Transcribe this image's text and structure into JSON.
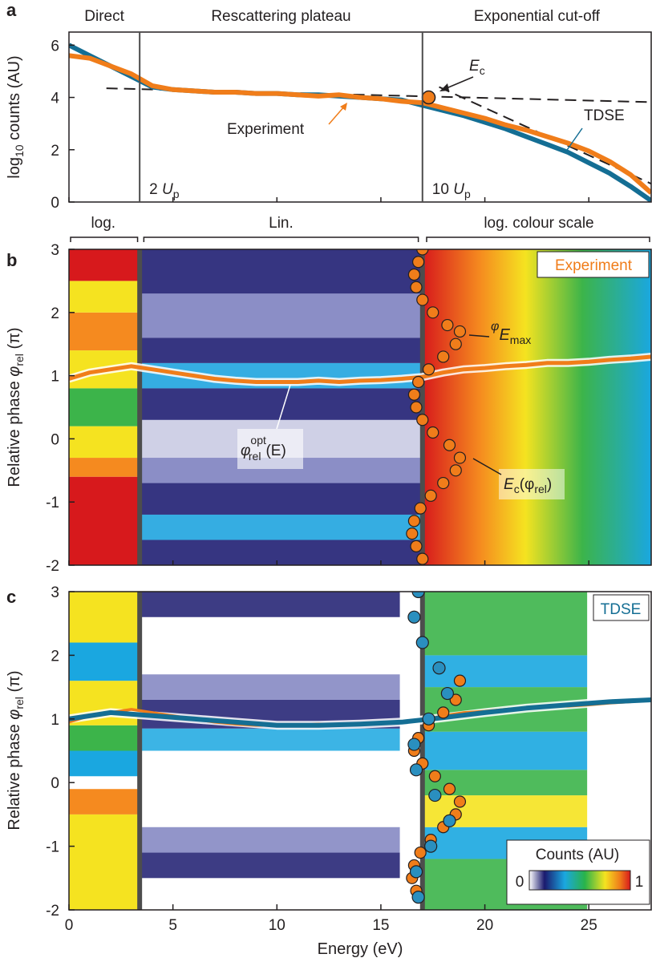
{
  "chart_data": [
    {
      "panel": "a",
      "type": "line",
      "ylabel": "log10 counts (AU)",
      "xlim": [
        0,
        28
      ],
      "ylim": [
        0,
        6.5
      ],
      "yticks": [
        0,
        2,
        4,
        6
      ],
      "regions": [
        "Direct",
        "Rescattering plateau",
        "Exponential cut-off"
      ],
      "region_boundaries": [
        3.4,
        17.0
      ],
      "boundary_labels": [
        {
          "base": "2 ",
          "var": "U",
          "sub": "p"
        },
        {
          "base": "10 ",
          "var": "U",
          "sub": "p"
        }
      ],
      "annotations": {
        "ec": {
          "var": "E",
          "sub": "c",
          "x": 17.3,
          "y": 4.0
        },
        "experiment": "Experiment",
        "tdse": "TDSE"
      },
      "series": [
        {
          "name": "Experiment",
          "color": "#f07d1a",
          "x": [
            0,
            1,
            2,
            3,
            4,
            5,
            6,
            7,
            8,
            9,
            10,
            11,
            12,
            13,
            14,
            15,
            16,
            17,
            18,
            19,
            20,
            21,
            22,
            23,
            24,
            25,
            26,
            27,
            28
          ],
          "y": [
            5.6,
            5.5,
            5.2,
            4.9,
            4.45,
            4.3,
            4.25,
            4.2,
            4.2,
            4.15,
            4.15,
            4.1,
            4.05,
            4.1,
            4.0,
            3.95,
            3.85,
            3.8,
            3.6,
            3.4,
            3.2,
            2.95,
            2.75,
            2.5,
            2.25,
            1.95,
            1.55,
            1.05,
            0.35
          ]
        },
        {
          "name": "TDSE",
          "color": "#146e94",
          "x": [
            0,
            1,
            2,
            3,
            4,
            5,
            6,
            7,
            8,
            9,
            10,
            11,
            12,
            13,
            14,
            15,
            16,
            17,
            18,
            19,
            20,
            21,
            22,
            23,
            24,
            25,
            26,
            27,
            28
          ],
          "y": [
            6.0,
            5.6,
            5.2,
            4.8,
            4.4,
            4.3,
            4.25,
            4.2,
            4.2,
            4.15,
            4.15,
            4.1,
            4.1,
            4.05,
            4.0,
            3.95,
            3.9,
            3.7,
            3.5,
            3.3,
            3.05,
            2.8,
            2.5,
            2.2,
            1.9,
            1.5,
            1.1,
            0.6,
            0.05
          ]
        }
      ],
      "fit_lines": [
        {
          "x": [
            1.8,
            29.0
          ],
          "y": [
            4.35,
            3.8
          ]
        },
        {
          "x": [
            17.8,
            28.0
          ],
          "y": [
            4.4,
            0.7
          ]
        }
      ]
    },
    {
      "panel": "b",
      "type": "heatmap",
      "ylabel": "Relative phase φrel (π)",
      "xlim": [
        0,
        28
      ],
      "ylim": [
        -2,
        3
      ],
      "yticks": [
        -2,
        -1,
        0,
        1,
        2,
        3
      ],
      "scale_labels": [
        "log.",
        "Lin.",
        "log. colour scale"
      ],
      "legend": "Experiment",
      "annotations": {
        "phi_emax": {
          "var": "φ",
          "sub": "E",
          "subsub": "max"
        },
        "phi_opt": {
          "var": "φ",
          "sub": "rel",
          "sup": "opt",
          "arg": "(E)"
        },
        "ec_phi": {
          "var": "E",
          "sub": "c",
          "arg": "(φ",
          "argsub": "rel",
          "close": ")"
        }
      },
      "phi_opt_curve": {
        "x": [
          0,
          1,
          2,
          3,
          4,
          5,
          6,
          7,
          8,
          9,
          10,
          11,
          12,
          13,
          14,
          15,
          16,
          17,
          18,
          19,
          20,
          21,
          22,
          23,
          24,
          25,
          26,
          27,
          28
        ],
        "y": [
          0.95,
          1.05,
          1.1,
          1.15,
          1.1,
          1.05,
          1.0,
          0.95,
          0.92,
          0.9,
          0.9,
          0.9,
          0.92,
          0.9,
          0.92,
          0.93,
          0.95,
          0.98,
          1.05,
          1.1,
          1.12,
          1.15,
          1.17,
          1.2,
          1.2,
          1.22,
          1.25,
          1.27,
          1.3
        ]
      },
      "ec_curve": {
        "phi": [
          3.0,
          2.8,
          2.6,
          2.4,
          2.2,
          2.0,
          1.8,
          1.7,
          1.5,
          1.3,
          1.1,
          0.9,
          0.7,
          0.5,
          0.3,
          0.1,
          -0.1,
          -0.3,
          -0.5,
          -0.7,
          -0.9,
          -1.1,
          -1.3,
          -1.5,
          -1.7,
          -1.9
        ],
        "E": [
          17.0,
          16.8,
          16.6,
          16.7,
          17.0,
          17.5,
          18.2,
          18.8,
          18.6,
          18.0,
          17.3,
          16.8,
          16.6,
          16.7,
          17.0,
          17.5,
          18.3,
          18.8,
          18.6,
          18.0,
          17.4,
          16.9,
          16.6,
          16.5,
          16.7,
          17.0
        ]
      }
    },
    {
      "panel": "c",
      "type": "heatmap",
      "ylabel": "Relative phase φrel (π)",
      "xlabel": "Energy (eV)",
      "xlim": [
        0,
        28
      ],
      "ylim": [
        -2,
        3
      ],
      "xticks": [
        0,
        5,
        10,
        15,
        20,
        25
      ],
      "yticks": [
        -2,
        -1,
        0,
        1,
        2,
        3
      ],
      "legend": "TDSE",
      "colorbar": {
        "title": "Counts (AU)",
        "min_label": "0",
        "max_label": "1"
      },
      "tdse_curve": {
        "x": [
          0,
          2,
          4,
          6,
          8,
          10,
          12,
          14,
          16,
          18,
          20,
          22,
          24,
          26,
          28
        ],
        "y": [
          1.0,
          1.1,
          1.05,
          1.0,
          0.95,
          0.9,
          0.9,
          0.92,
          0.95,
          1.02,
          1.1,
          1.17,
          1.22,
          1.27,
          1.3
        ]
      },
      "ec_curve_tdse": {
        "phi": [
          3.0,
          2.6,
          2.2,
          1.8,
          1.4,
          1.0,
          0.6,
          0.2,
          -0.2,
          -0.6,
          -1.0,
          -1.4,
          -1.8
        ],
        "E": [
          16.8,
          16.6,
          17.0,
          17.8,
          18.2,
          17.3,
          16.6,
          16.7,
          17.6,
          18.3,
          17.4,
          16.7,
          16.8
        ]
      },
      "ec_curve_exp": {
        "phi": [
          1.6,
          1.3,
          1.1,
          0.9,
          0.7,
          0.5,
          0.3,
          0.1,
          -0.1,
          -0.3,
          -0.5,
          -0.7,
          -0.9,
          -1.1,
          -1.3,
          -1.5,
          -1.7
        ],
        "E": [
          18.8,
          18.6,
          18.0,
          17.3,
          16.8,
          16.6,
          17.0,
          17.6,
          18.3,
          18.8,
          18.6,
          18.0,
          17.4,
          16.9,
          16.6,
          16.5,
          16.7
        ]
      }
    }
  ]
}
